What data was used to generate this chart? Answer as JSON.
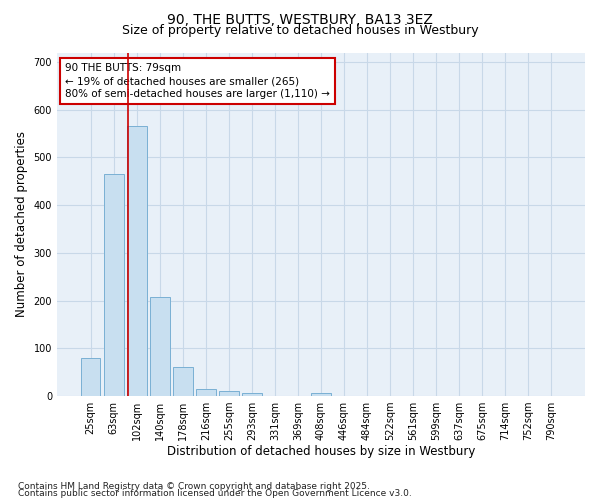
{
  "title1": "90, THE BUTTS, WESTBURY, BA13 3EZ",
  "title2": "Size of property relative to detached houses in Westbury",
  "xlabel": "Distribution of detached houses by size in Westbury",
  "ylabel": "Number of detached properties",
  "categories": [
    "25sqm",
    "63sqm",
    "102sqm",
    "140sqm",
    "178sqm",
    "216sqm",
    "255sqm",
    "293sqm",
    "331sqm",
    "369sqm",
    "408sqm",
    "446sqm",
    "484sqm",
    "522sqm",
    "561sqm",
    "599sqm",
    "637sqm",
    "675sqm",
    "714sqm",
    "752sqm",
    "790sqm"
  ],
  "values": [
    80,
    465,
    565,
    208,
    60,
    15,
    10,
    7,
    0,
    0,
    7,
    0,
    0,
    0,
    0,
    0,
    0,
    0,
    0,
    0,
    0
  ],
  "bar_color": "#c8dff0",
  "bar_edge_color": "#7ab0d4",
  "vline_x": 1.62,
  "vline_color": "#cc0000",
  "annotation_text": "90 THE BUTTS: 79sqm\n← 19% of detached houses are smaller (265)\n80% of semi-detached houses are larger (1,110) →",
  "annotation_box_color": "#ffffff",
  "annotation_box_edgecolor": "#cc0000",
  "ylim": [
    0,
    720
  ],
  "yticks": [
    0,
    100,
    200,
    300,
    400,
    500,
    600,
    700
  ],
  "bg_color": "#e8f0f8",
  "grid_color": "#c0ced e",
  "footer1": "Contains HM Land Registry data © Crown copyright and database right 2025.",
  "footer2": "Contains public sector information licensed under the Open Government Licence v3.0.",
  "title1_fontsize": 10,
  "title2_fontsize": 9,
  "xlabel_fontsize": 8.5,
  "ylabel_fontsize": 8.5,
  "tick_fontsize": 7,
  "footer_fontsize": 6.5,
  "ann_fontsize": 7.5
}
